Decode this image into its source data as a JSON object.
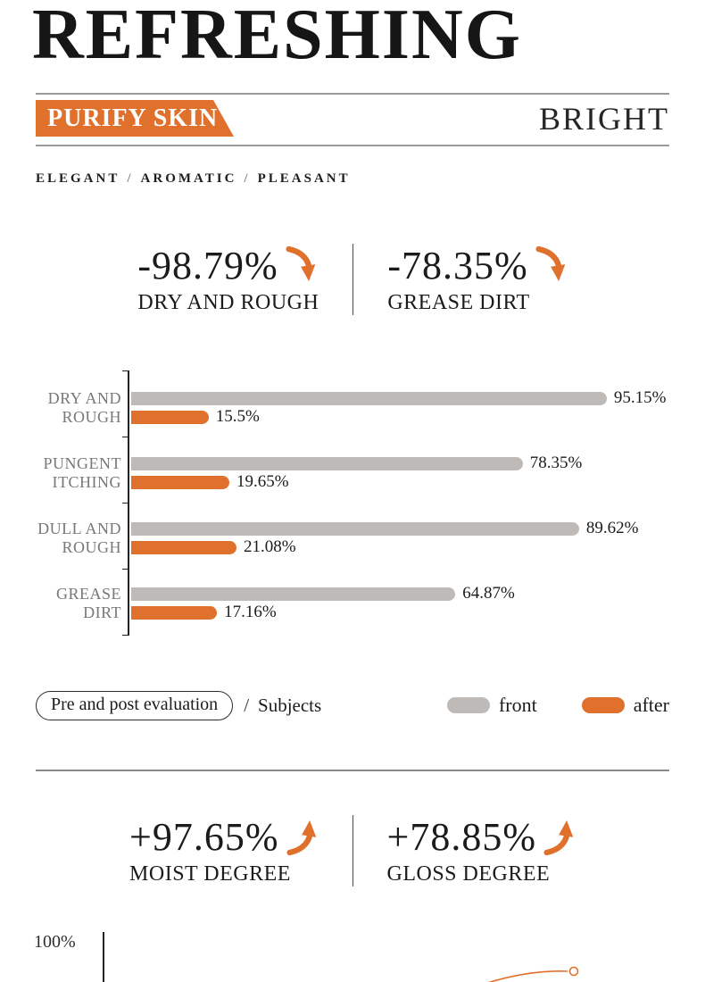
{
  "colors": {
    "accent_orange": "#e0712c",
    "bar_gray": "#bdbab7",
    "text_dark": "#1b1b1b",
    "category_label_gray": "#7a7876",
    "banner_text_white": "#ffffff"
  },
  "header": {
    "title": "REFRESHING",
    "banner_label": "PURIFY SKIN",
    "right_label": "BRIGHT",
    "tagline": {
      "items": [
        "ELEGANT",
        "AROMATIC",
        "PLEASANT"
      ],
      "separator": "/"
    }
  },
  "stats_top": {
    "items": [
      {
        "value": "-98.79%",
        "label": "DRY AND ROUGH",
        "direction": "down"
      },
      {
        "value": "-78.35%",
        "label": "GREASE DIRT",
        "direction": "down"
      }
    ]
  },
  "stats_bottom": {
    "items": [
      {
        "value": "+97.65%",
        "label": "MOIST DEGREE",
        "direction": "up"
      },
      {
        "value": "+78.85%",
        "label": "GLOSS DEGREE",
        "direction": "up"
      }
    ]
  },
  "chart_data": [
    {
      "type": "bar",
      "orientation": "horizontal",
      "title": "",
      "categories": [
        "DRY AND ROUGH",
        "PUNGENT ITCHING",
        "DULL AND ROUGH",
        "GREASE DIRT"
      ],
      "category_label_lines": [
        [
          "DRY AND",
          "ROUGH"
        ],
        [
          "PUNGENT",
          "ITCHING"
        ],
        [
          "DULL AND",
          "ROUGH"
        ],
        [
          "GREASE",
          "DIRT"
        ]
      ],
      "series": [
        {
          "name": "front",
          "color": "#bdbab7",
          "values": [
            95.15,
            78.35,
            89.62,
            64.87
          ],
          "value_labels": [
            "95.15%",
            "78.35%",
            "89.62%",
            "64.87%"
          ]
        },
        {
          "name": "after",
          "color": "#e0712c",
          "values": [
            15.5,
            19.65,
            21.08,
            17.16
          ],
          "value_labels": [
            "15.5%",
            "19.65%",
            "21.08%",
            "17.16%"
          ]
        }
      ],
      "xlim": [
        0,
        100
      ],
      "grid": false,
      "legend": {
        "position": "bottom",
        "evaluation_label": "Pre and post evaluation",
        "separator": "/",
        "subjects_label": "Subjects",
        "entries": [
          {
            "label": "front",
            "color": "#bdbab7"
          },
          {
            "label": "after",
            "color": "#e0712c"
          }
        ]
      }
    },
    {
      "type": "line",
      "note": "only top edge visible at bottom of image",
      "visible_tick_labels": [
        "100%"
      ],
      "line_color": "#e0712c"
    }
  ]
}
